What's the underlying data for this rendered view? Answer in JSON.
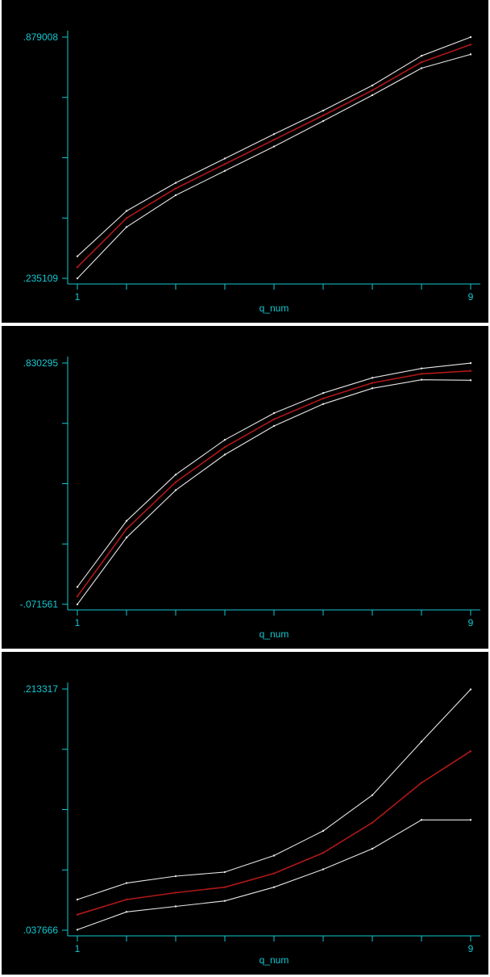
{
  "colors": {
    "background": "#000000",
    "axis": "#14c8d2",
    "estimate": "#b01818",
    "bounds": "#e6e6e6"
  },
  "chart_data": [
    {
      "type": "line",
      "xlabel": "q_num",
      "x_tick_labels": [
        "1",
        "9"
      ],
      "y_tick_labels": [
        ".235109",
        ".879008"
      ],
      "xlim": [
        1,
        9
      ],
      "ylim": [
        0.235109,
        0.879008
      ],
      "x": [
        1,
        2,
        3,
        4,
        5,
        6,
        7,
        8,
        9
      ],
      "series": [
        {
          "role": "upper",
          "values": [
            0.294,
            0.415,
            0.49,
            0.555,
            0.62,
            0.683,
            0.75,
            0.829,
            0.879
          ]
        },
        {
          "role": "estimate",
          "values": [
            0.265,
            0.396,
            0.475,
            0.54,
            0.605,
            0.67,
            0.737,
            0.812,
            0.859
          ]
        },
        {
          "role": "lower",
          "values": [
            0.235,
            0.372,
            0.457,
            0.522,
            0.587,
            0.655,
            0.724,
            0.796,
            0.833
          ]
        }
      ]
    },
    {
      "type": "line",
      "xlabel": "q_num",
      "x_tick_labels": [
        "1",
        "9"
      ],
      "y_tick_labels": [
        ".830295",
        "-.071561"
      ],
      "xlim": [
        1,
        9
      ],
      "ylim": [
        -0.071561,
        0.830295
      ],
      "x": [
        1,
        2,
        3,
        4,
        5,
        6,
        7,
        8,
        9
      ],
      "series": [
        {
          "role": "upper",
          "values": [
            -0.007,
            0.24,
            0.413,
            0.543,
            0.643,
            0.718,
            0.775,
            0.81,
            0.83
          ]
        },
        {
          "role": "estimate",
          "values": [
            -0.042,
            0.21,
            0.385,
            0.516,
            0.62,
            0.698,
            0.756,
            0.79,
            0.801
          ]
        },
        {
          "role": "lower",
          "values": [
            -0.072,
            0.178,
            0.355,
            0.488,
            0.595,
            0.677,
            0.736,
            0.768,
            0.766
          ]
        }
      ]
    },
    {
      "type": "line",
      "xlabel": "q_num",
      "x_tick_labels": [
        "1",
        "9"
      ],
      "y_tick_labels": [
        ".213317",
        ".037666"
      ],
      "xlim": [
        1,
        9
      ],
      "ylim": [
        0.037666,
        0.213317
      ],
      "x": [
        1,
        2,
        3,
        4,
        5,
        6,
        7,
        8,
        9
      ],
      "series": [
        {
          "role": "upper",
          "values": [
            0.06,
            0.072,
            0.077,
            0.08,
            0.092,
            0.11,
            0.136,
            0.175,
            0.213
          ]
        },
        {
          "role": "estimate",
          "values": [
            0.049,
            0.06,
            0.065,
            0.069,
            0.079,
            0.094,
            0.116,
            0.145,
            0.168
          ]
        },
        {
          "role": "lower",
          "values": [
            0.038,
            0.051,
            0.055,
            0.059,
            0.069,
            0.082,
            0.097,
            0.118,
            0.118
          ]
        }
      ]
    }
  ]
}
